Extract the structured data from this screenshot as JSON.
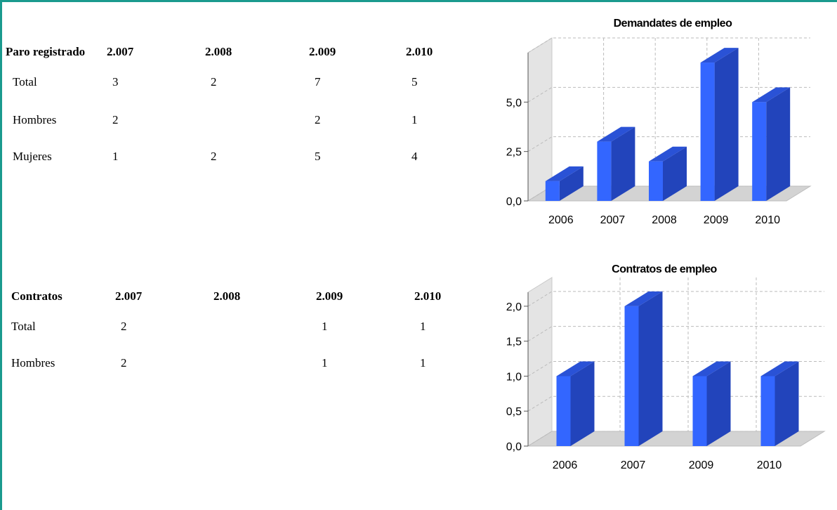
{
  "table1": {
    "headers": [
      "Paro registrado",
      "2.007",
      "2.008",
      "2.009",
      "2.010"
    ],
    "rows": [
      {
        "label": "Total",
        "values": [
          "3",
          "2",
          "7",
          "5"
        ]
      },
      {
        "label": "Hombres",
        "values": [
          "2",
          "",
          "2",
          "1"
        ]
      },
      {
        "label": "Mujeres",
        "values": [
          "1",
          "2",
          "5",
          "4"
        ]
      }
    ]
  },
  "table2": {
    "headers": [
      "Contratos",
      "2.007",
      "2.008",
      "2.009",
      "2.010"
    ],
    "rows": [
      {
        "label": "Total",
        "values": [
          "2",
          "",
          "1",
          "1"
        ]
      },
      {
        "label": "Hombres",
        "values": [
          "2",
          "",
          "1",
          "1"
        ]
      }
    ]
  },
  "colors": {
    "frame": "#1a9a8e",
    "bar_front": "#3366ff",
    "bar_side": "#2244bb",
    "bar_top": "#2a52d6",
    "floor": "#d3d3d3",
    "wall": "#e4e4e4",
    "grid": "#bbbbbb"
  },
  "chart_data": [
    {
      "type": "bar",
      "title": "Demandates de empleo",
      "categories": [
        "2006",
        "2007",
        "2008",
        "2009",
        "2010"
      ],
      "values": [
        1,
        3,
        2,
        7,
        5
      ],
      "ylim": [
        0,
        7.5
      ],
      "yticks": [
        "0,0",
        "2,5",
        "5,0"
      ],
      "ytick_values": [
        0,
        2.5,
        5
      ],
      "grid_values": [
        0,
        2.5,
        5,
        7.5
      ],
      "grid": true
    },
    {
      "type": "bar",
      "title": "Contratos de empleo",
      "categories": [
        "2006",
        "2007",
        "2009",
        "2010"
      ],
      "values": [
        1,
        2,
        1,
        1
      ],
      "ylim": [
        0,
        2.2
      ],
      "yticks": [
        "0,0",
        "0,5",
        "1,0",
        "1,5",
        "2,0"
      ],
      "ytick_values": [
        0,
        0.5,
        1,
        1.5,
        2
      ],
      "grid_values": [
        0,
        0.5,
        1,
        1.5,
        2
      ],
      "grid": true
    }
  ]
}
